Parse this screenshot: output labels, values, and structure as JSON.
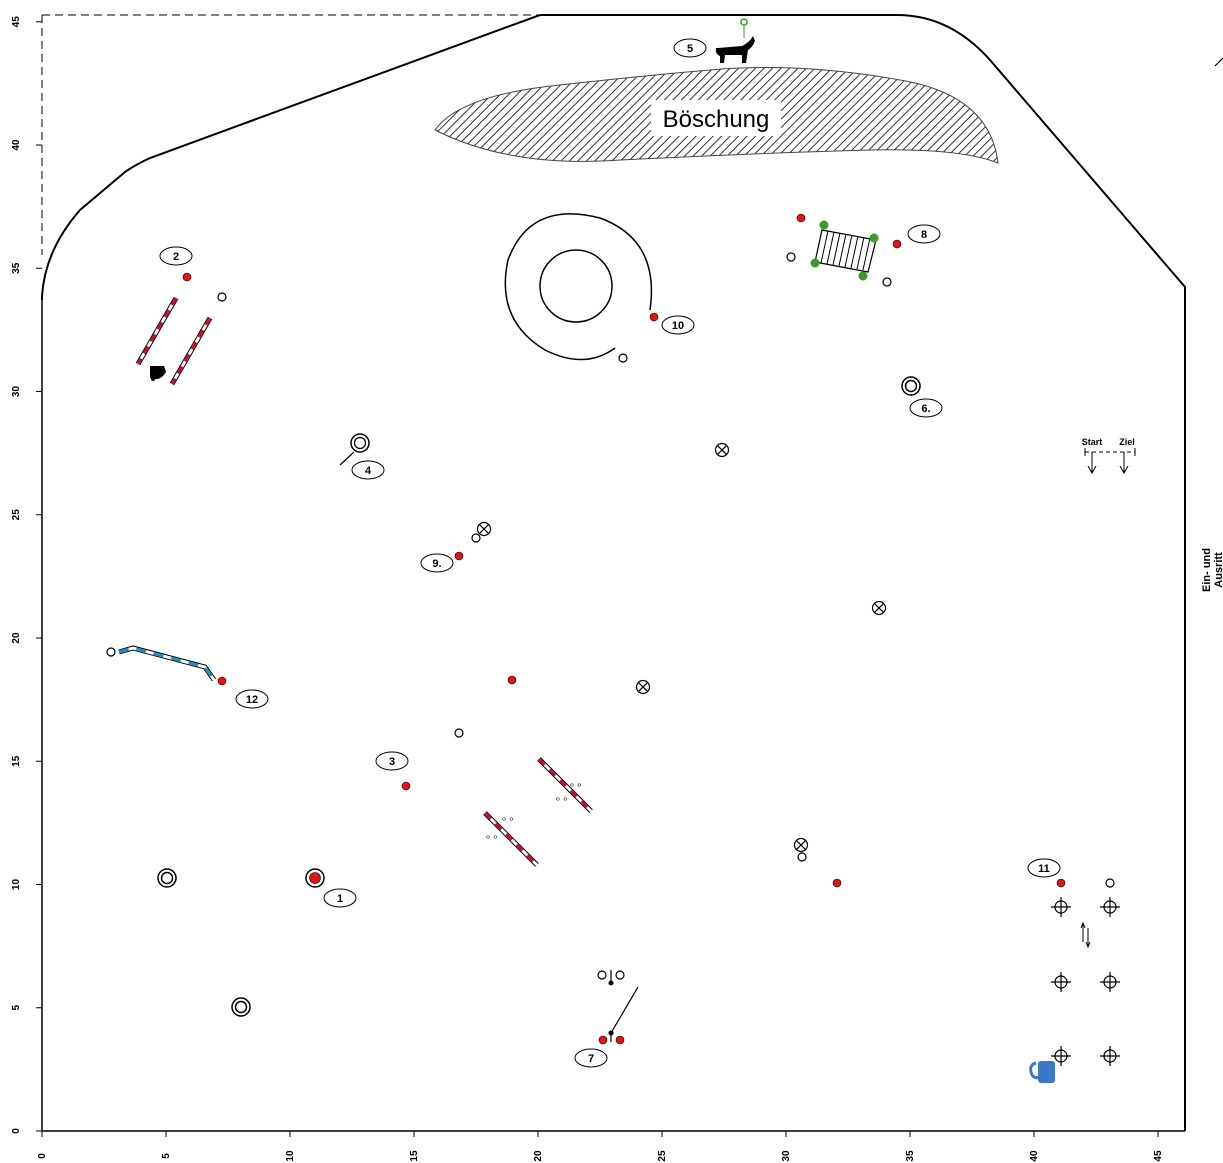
{
  "colors": {
    "marker_red": "#e11515",
    "pole_red": "#c8102e",
    "pole_blue": "#1e90c8",
    "bush_green": "#3a9a2a",
    "mug_blue": "#3b78c8"
  },
  "axes": {
    "x_ticks": [
      "0",
      "5",
      "10",
      "15",
      "20",
      "25",
      "30",
      "35",
      "40",
      "45"
    ],
    "y_ticks": [
      "0",
      "5",
      "10",
      "15",
      "20",
      "25",
      "30",
      "35",
      "40",
      "45"
    ]
  },
  "labels": {
    "embankment": "Böschung",
    "start": "Start",
    "finish": "Ziel",
    "entrance_line1": "Ein- und",
    "entrance_line2": "Ausritt"
  },
  "stations": [
    {
      "id": "1",
      "icon": "double-ring-marker"
    },
    {
      "id": "2",
      "icon": "pole-pair-with-bell"
    },
    {
      "id": "3",
      "icon": "ground-poles"
    },
    {
      "id": "4",
      "icon": "ring-with-stick"
    },
    {
      "id": "5",
      "icon": "bull-figure-icon"
    },
    {
      "id": "6.",
      "icon": "double-ring"
    },
    {
      "id": "7",
      "icon": "gate-posts"
    },
    {
      "id": "8",
      "icon": "bridge-with-bushes"
    },
    {
      "id": "9.",
      "icon": "crossed-circle-marker"
    },
    {
      "id": "10",
      "icon": "circle-spiral-track"
    },
    {
      "id": "11",
      "icon": "crosshair-slalom"
    },
    {
      "id": "12",
      "icon": "blue-pole-line"
    }
  ]
}
